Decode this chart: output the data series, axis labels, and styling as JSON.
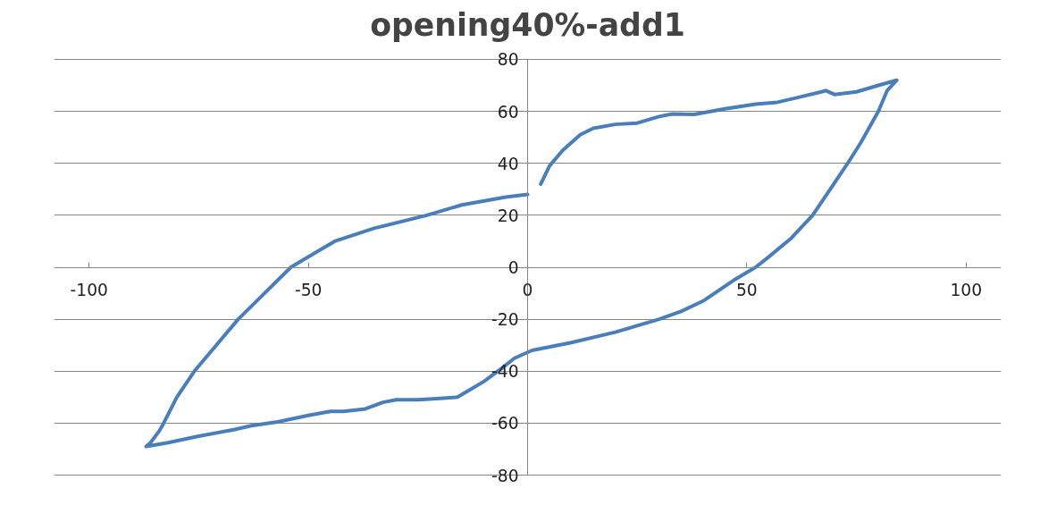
{
  "chart_data": {
    "type": "line",
    "title": "opening40%-add1",
    "x": [
      3,
      5,
      8,
      12,
      15,
      20,
      25,
      30,
      33,
      38,
      45,
      52,
      57,
      62,
      67,
      68,
      70,
      75,
      80,
      84.2,
      82,
      80,
      76,
      73,
      69,
      65,
      60,
      55,
      52,
      47,
      40,
      35,
      30,
      20,
      10,
      1,
      -3,
      -6,
      -10,
      -14,
      -16,
      -20,
      -25,
      -30,
      -33,
      -37,
      -42,
      -45,
      -50,
      -57,
      -63,
      -67,
      -75,
      -82,
      -87,
      -86,
      -84,
      -83,
      -80,
      -76,
      -71,
      -66,
      -60,
      -54,
      -48,
      -44,
      -35,
      -23,
      -15,
      -5,
      0
    ],
    "series": [
      {
        "color": "#4a7ebb",
        "values": [
          32,
          39,
          45,
          51,
          53.5,
          55,
          55.5,
          58,
          59,
          58.8,
          61,
          62.8,
          63.5,
          65.5,
          67.5,
          68,
          66.5,
          67.5,
          70,
          72,
          68,
          60,
          48,
          40,
          30,
          20,
          11,
          4,
          0,
          -5,
          -13,
          -17,
          -20,
          -25,
          -29,
          -32,
          -35,
          -39,
          -44,
          -48,
          -50,
          -50.5,
          -51,
          -51,
          -52,
          -54.5,
          -55.5,
          -55.5,
          -57,
          -59.5,
          -61,
          -62.5,
          -65,
          -67.5,
          -69,
          -67.5,
          -63,
          -60,
          -50,
          -40,
          -30,
          -20,
          -10,
          0,
          6,
          10,
          15,
          20,
          24,
          27,
          28
        ]
      }
    ],
    "xlim": [
      -100,
      100
    ],
    "xticks": [
      -100,
      -50,
      0,
      50,
      100
    ],
    "ylim": [
      -80,
      80
    ],
    "yticks": [
      -80,
      -60,
      -40,
      -20,
      0,
      20,
      40,
      60,
      80
    ],
    "grid": "y",
    "marker": "none",
    "line_style": "solid"
  }
}
